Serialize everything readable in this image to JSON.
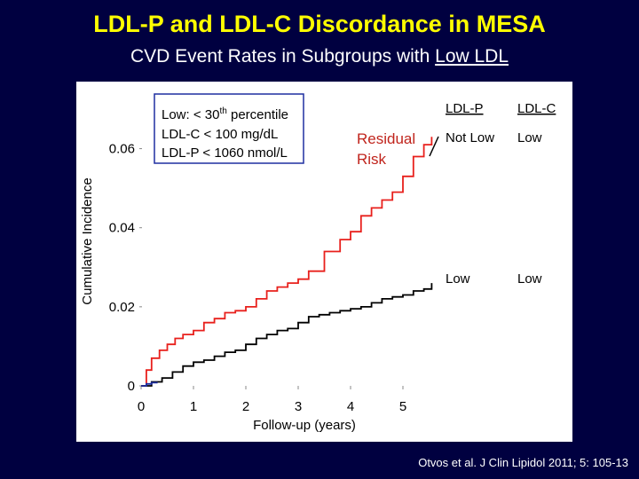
{
  "slide": {
    "title": "LDL-P and LDL-C Discordance in MESA",
    "subtitle_prefix": "CVD Event Rates in Subgroups with ",
    "subtitle_underlined": "Low LDL",
    "citation": "Otvos et al. J Clin Lipidol 2011; 5: 105-13"
  },
  "legend_box": {
    "line1_prefix": "Low: < 30",
    "line1_sup": "th",
    "line1_suffix": " percentile",
    "line2": "LDL-C < 100 mg/dL",
    "line3": "LDL-P < 1060 nmol/L"
  },
  "annotation": {
    "line1": "Residual",
    "line2": "Risk"
  },
  "table": {
    "header_ldlp": "LDL-P",
    "header_ldlc": "LDL-C",
    "row1_ldlp": "Not Low",
    "row1_ldlc": "Low",
    "row2_ldlp": "Low",
    "row2_ldlc": "Low"
  },
  "colors": {
    "background": "#000040",
    "title": "#ffff00",
    "red_series": "#e8201c",
    "black_series": "#000000",
    "blue_series": "#1f2fa0",
    "annotation": "#c0241c"
  },
  "chart_data": {
    "type": "line",
    "title": "",
    "xlabel": "Follow-up (years)",
    "ylabel": "Cumulative Incidence",
    "xlim": [
      0,
      5.6
    ],
    "ylim": [
      0,
      0.07
    ],
    "x_ticks": [
      "0",
      "1",
      "2",
      "3",
      "4",
      "5"
    ],
    "y_ticks": [
      "0",
      "0.02",
      "0.04",
      "0.06"
    ],
    "grid": false,
    "series": [
      {
        "color": "#e8201c",
        "x": [
          0,
          0.1,
          0.2,
          0.35,
          0.5,
          0.65,
          0.8,
          1.0,
          1.2,
          1.4,
          1.6,
          1.8,
          2.0,
          2.2,
          2.4,
          2.6,
          2.8,
          3.0,
          3.2,
          3.5,
          3.8,
          4.0,
          4.2,
          4.4,
          4.6,
          4.8,
          5.0,
          5.2,
          5.4,
          5.55
        ],
        "y": [
          0,
          0.004,
          0.007,
          0.009,
          0.0105,
          0.012,
          0.013,
          0.014,
          0.016,
          0.017,
          0.0185,
          0.019,
          0.02,
          0.022,
          0.024,
          0.025,
          0.026,
          0.027,
          0.029,
          0.034,
          0.037,
          0.039,
          0.043,
          0.045,
          0.047,
          0.049,
          0.053,
          0.058,
          0.061,
          0.063
        ]
      },
      {
        "color": "#000000",
        "x": [
          0,
          0.2,
          0.4,
          0.6,
          0.8,
          1.0,
          1.2,
          1.4,
          1.6,
          1.8,
          2.0,
          2.2,
          2.4,
          2.6,
          2.8,
          3.0,
          3.2,
          3.4,
          3.6,
          3.8,
          4.0,
          4.2,
          4.4,
          4.6,
          4.8,
          5.0,
          5.2,
          5.4,
          5.55
        ],
        "y": [
          0,
          0.001,
          0.002,
          0.0035,
          0.005,
          0.006,
          0.0065,
          0.0075,
          0.0085,
          0.009,
          0.0105,
          0.012,
          0.013,
          0.014,
          0.0145,
          0.016,
          0.0175,
          0.018,
          0.0185,
          0.019,
          0.0195,
          0.02,
          0.021,
          0.022,
          0.0225,
          0.023,
          0.024,
          0.0245,
          0.026
        ]
      },
      {
        "color": "#1f2fa0",
        "x": [
          0,
          0.1,
          0.2,
          0.3
        ],
        "y": [
          0,
          0.0005,
          0.0008,
          0.001
        ]
      }
    ]
  }
}
